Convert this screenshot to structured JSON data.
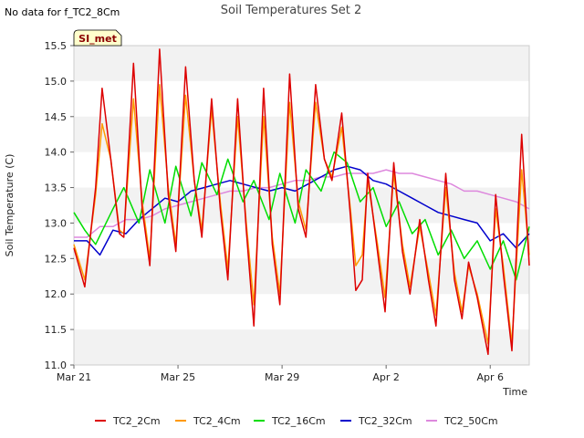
{
  "header": {
    "nodata_text": "No data for f_TC2_8Cm"
  },
  "badge": {
    "label": "SI_met",
    "fill": "#ffffcc",
    "text_color": "#8b0000"
  },
  "chart_data": {
    "type": "line",
    "title": "Soil Temperatures Set 2",
    "xlabel": "Time",
    "ylabel": "Soil Temperature (C)",
    "x_start": "2024-03-21",
    "x_end": "2024-04-07T12:00",
    "ylim": [
      11.0,
      15.5
    ],
    "yticks": [
      11.0,
      11.5,
      12.0,
      12.5,
      13.0,
      13.5,
      14.0,
      14.5,
      15.0,
      15.5
    ],
    "ytick_labels": [
      "11.0",
      "11.5",
      "12.0",
      "12.5",
      "13.0",
      "13.5",
      "14.0",
      "14.5",
      "15.0",
      "15.5"
    ],
    "xticks": [
      {
        "x": "2024-03-21",
        "label": "Mar 21"
      },
      {
        "x": "2024-03-25",
        "label": "Mar 25"
      },
      {
        "x": "2024-03-29",
        "label": "Mar 29"
      },
      {
        "x": "2024-04-02",
        "label": "Apr 2"
      },
      {
        "x": "2024-04-06",
        "label": "Apr 6"
      }
    ],
    "grid": "alternating horizontal bands",
    "band_color": "#f2f2f2",
    "legend_position": "bottom",
    "series": [
      {
        "name": "TC2_2Cm",
        "color": "#dd0000",
        "points": [
          [
            "2024-03-21T00:00",
            12.65
          ],
          [
            "2024-03-21T10:00",
            12.1
          ],
          [
            "2024-03-21T20:00",
            13.5
          ],
          [
            "2024-03-22T02:00",
            14.9
          ],
          [
            "2024-03-22T10:00",
            13.9
          ],
          [
            "2024-03-22T18:00",
            12.85
          ],
          [
            "2024-03-22T22:00",
            12.8
          ],
          [
            "2024-03-23T07:00",
            15.25
          ],
          [
            "2024-03-23T15:00",
            13.2
          ],
          [
            "2024-03-23T22:00",
            12.4
          ],
          [
            "2024-03-24T07:00",
            15.45
          ],
          [
            "2024-03-24T15:00",
            13.4
          ],
          [
            "2024-03-24T22:00",
            12.6
          ],
          [
            "2024-03-25T07:00",
            15.2
          ],
          [
            "2024-03-25T15:00",
            13.6
          ],
          [
            "2024-03-25T22:00",
            12.8
          ],
          [
            "2024-03-26T07:00",
            14.75
          ],
          [
            "2024-03-26T15:00",
            13.2
          ],
          [
            "2024-03-26T22:00",
            12.2
          ],
          [
            "2024-03-27T07:00",
            14.75
          ],
          [
            "2024-03-27T15:00",
            12.9
          ],
          [
            "2024-03-27T22:00",
            11.55
          ],
          [
            "2024-03-28T07:00",
            14.9
          ],
          [
            "2024-03-28T15:00",
            12.7
          ],
          [
            "2024-03-28T22:00",
            11.85
          ],
          [
            "2024-03-29T07:00",
            15.1
          ],
          [
            "2024-03-29T15:00",
            13.2
          ],
          [
            "2024-03-29T22:00",
            12.8
          ],
          [
            "2024-03-30T07:00",
            14.95
          ],
          [
            "2024-03-30T15:00",
            13.9
          ],
          [
            "2024-03-30T22:00",
            13.6
          ],
          [
            "2024-03-31T07:00",
            14.55
          ],
          [
            "2024-03-31T15:00",
            13.1
          ],
          [
            "2024-03-31T20:00",
            12.05
          ],
          [
            "2024-04-01T02:00",
            12.2
          ],
          [
            "2024-04-01T07:00",
            13.7
          ],
          [
            "2024-04-01T16:00",
            12.6
          ],
          [
            "2024-04-01T23:00",
            11.75
          ],
          [
            "2024-04-02T07:00",
            13.85
          ],
          [
            "2024-04-02T15:00",
            12.6
          ],
          [
            "2024-04-02T22:00",
            12.0
          ],
          [
            "2024-04-03T07:00",
            13.05
          ],
          [
            "2024-04-03T15:00",
            12.2
          ],
          [
            "2024-04-03T22:00",
            11.55
          ],
          [
            "2024-04-04T07:00",
            13.7
          ],
          [
            "2024-04-04T15:00",
            12.2
          ],
          [
            "2024-04-04T22:00",
            11.65
          ],
          [
            "2024-04-05T04:00",
            12.45
          ],
          [
            "2024-04-05T12:00",
            11.95
          ],
          [
            "2024-04-05T22:00",
            11.15
          ],
          [
            "2024-04-06T05:00",
            13.4
          ],
          [
            "2024-04-06T12:00",
            12.3
          ],
          [
            "2024-04-06T20:00",
            11.2
          ],
          [
            "2024-04-07T05:00",
            14.25
          ],
          [
            "2024-04-07T12:00",
            12.4
          ]
        ]
      },
      {
        "name": "TC2_4Cm",
        "color": "#ff9900",
        "points": [
          [
            "2024-03-21T00:00",
            12.7
          ],
          [
            "2024-03-21T10:00",
            12.2
          ],
          [
            "2024-03-21T20:00",
            13.4
          ],
          [
            "2024-03-22T02:00",
            14.4
          ],
          [
            "2024-03-22T10:00",
            13.9
          ],
          [
            "2024-03-22T18:00",
            12.9
          ],
          [
            "2024-03-22T22:00",
            12.85
          ],
          [
            "2024-03-23T07:00",
            14.75
          ],
          [
            "2024-03-23T15:00",
            13.3
          ],
          [
            "2024-03-23T22:00",
            12.5
          ],
          [
            "2024-03-24T07:00",
            14.95
          ],
          [
            "2024-03-24T15:00",
            13.5
          ],
          [
            "2024-03-24T22:00",
            12.7
          ],
          [
            "2024-03-25T07:00",
            14.8
          ],
          [
            "2024-03-25T15:00",
            13.6
          ],
          [
            "2024-03-25T22:00",
            12.9
          ],
          [
            "2024-03-26T07:00",
            14.6
          ],
          [
            "2024-03-26T15:00",
            13.3
          ],
          [
            "2024-03-26T22:00",
            12.35
          ],
          [
            "2024-03-27T07:00",
            14.5
          ],
          [
            "2024-03-27T15:00",
            13.0
          ],
          [
            "2024-03-27T22:00",
            11.85
          ],
          [
            "2024-03-28T07:00",
            14.5
          ],
          [
            "2024-03-28T15:00",
            12.8
          ],
          [
            "2024-03-28T22:00",
            12.0
          ],
          [
            "2024-03-29T07:00",
            14.7
          ],
          [
            "2024-03-29T15:00",
            13.3
          ],
          [
            "2024-03-29T22:00",
            12.9
          ],
          [
            "2024-03-30T07:00",
            14.7
          ],
          [
            "2024-03-30T15:00",
            13.9
          ],
          [
            "2024-03-30T22:00",
            13.65
          ],
          [
            "2024-03-31T07:00",
            14.35
          ],
          [
            "2024-03-31T15:00",
            13.2
          ],
          [
            "2024-03-31T20:00",
            12.4
          ],
          [
            "2024-04-01T02:00",
            12.55
          ],
          [
            "2024-04-01T07:00",
            13.6
          ],
          [
            "2024-04-01T16:00",
            12.7
          ],
          [
            "2024-04-01T23:00",
            11.95
          ],
          [
            "2024-04-02T07:00",
            13.7
          ],
          [
            "2024-04-02T15:00",
            12.7
          ],
          [
            "2024-04-02T22:00",
            12.1
          ],
          [
            "2024-04-03T07:00",
            12.95
          ],
          [
            "2024-04-03T15:00",
            12.3
          ],
          [
            "2024-04-03T22:00",
            11.7
          ],
          [
            "2024-04-04T07:00",
            13.5
          ],
          [
            "2024-04-04T15:00",
            12.3
          ],
          [
            "2024-04-04T22:00",
            11.75
          ],
          [
            "2024-04-05T04:00",
            12.4
          ],
          [
            "2024-04-05T12:00",
            12.0
          ],
          [
            "2024-04-05T22:00",
            11.3
          ],
          [
            "2024-04-06T05:00",
            13.2
          ],
          [
            "2024-04-06T12:00",
            12.4
          ],
          [
            "2024-04-06T20:00",
            11.3
          ],
          [
            "2024-04-07T05:00",
            13.75
          ],
          [
            "2024-04-07T12:00",
            12.55
          ]
        ]
      },
      {
        "name": "TC2_16Cm",
        "color": "#00dd00",
        "points": [
          [
            "2024-03-21T00:00",
            13.15
          ],
          [
            "2024-03-21T10:00",
            12.9
          ],
          [
            "2024-03-21T20:00",
            12.7
          ],
          [
            "2024-03-22T12:00",
            13.2
          ],
          [
            "2024-03-22T22:00",
            13.5
          ],
          [
            "2024-03-23T12:00",
            13.0
          ],
          [
            "2024-03-23T22:00",
            13.75
          ],
          [
            "2024-03-24T12:00",
            13.0
          ],
          [
            "2024-03-24T22:00",
            13.8
          ],
          [
            "2024-03-25T12:00",
            13.1
          ],
          [
            "2024-03-25T22:00",
            13.85
          ],
          [
            "2024-03-26T12:00",
            13.4
          ],
          [
            "2024-03-26T22:00",
            13.9
          ],
          [
            "2024-03-27T12:00",
            13.3
          ],
          [
            "2024-03-27T22:00",
            13.6
          ],
          [
            "2024-03-28T12:00",
            13.05
          ],
          [
            "2024-03-28T22:00",
            13.7
          ],
          [
            "2024-03-29T12:00",
            13.0
          ],
          [
            "2024-03-29T22:00",
            13.75
          ],
          [
            "2024-03-30T12:00",
            13.45
          ],
          [
            "2024-03-31T00:00",
            14.0
          ],
          [
            "2024-03-31T12:00",
            13.85
          ],
          [
            "2024-04-01T00:00",
            13.3
          ],
          [
            "2024-04-01T12:00",
            13.5
          ],
          [
            "2024-04-02T00:00",
            12.95
          ],
          [
            "2024-04-02T12:00",
            13.3
          ],
          [
            "2024-04-03T00:00",
            12.85
          ],
          [
            "2024-04-03T12:00",
            13.05
          ],
          [
            "2024-04-04T00:00",
            12.55
          ],
          [
            "2024-04-04T12:00",
            12.9
          ],
          [
            "2024-04-05T00:00",
            12.5
          ],
          [
            "2024-04-05T12:00",
            12.75
          ],
          [
            "2024-04-06T00:00",
            12.35
          ],
          [
            "2024-04-06T12:00",
            12.75
          ],
          [
            "2024-04-07T00:00",
            12.2
          ],
          [
            "2024-04-07T12:00",
            12.95
          ]
        ]
      },
      {
        "name": "TC2_32Cm",
        "color": "#0000cc",
        "points": [
          [
            "2024-03-21T00:00",
            12.75
          ],
          [
            "2024-03-21T12:00",
            12.75
          ],
          [
            "2024-03-22T00:00",
            12.55
          ],
          [
            "2024-03-22T12:00",
            12.9
          ],
          [
            "2024-03-23T00:00",
            12.85
          ],
          [
            "2024-03-23T12:00",
            13.05
          ],
          [
            "2024-03-24T00:00",
            13.2
          ],
          [
            "2024-03-24T12:00",
            13.35
          ],
          [
            "2024-03-25T00:00",
            13.3
          ],
          [
            "2024-03-25T12:00",
            13.45
          ],
          [
            "2024-03-26T00:00",
            13.5
          ],
          [
            "2024-03-26T12:00",
            13.55
          ],
          [
            "2024-03-27T00:00",
            13.6
          ],
          [
            "2024-03-27T12:00",
            13.55
          ],
          [
            "2024-03-28T00:00",
            13.5
          ],
          [
            "2024-03-28T12:00",
            13.45
          ],
          [
            "2024-03-29T00:00",
            13.5
          ],
          [
            "2024-03-29T12:00",
            13.45
          ],
          [
            "2024-03-30T00:00",
            13.55
          ],
          [
            "2024-03-30T12:00",
            13.65
          ],
          [
            "2024-03-31T00:00",
            13.75
          ],
          [
            "2024-03-31T12:00",
            13.8
          ],
          [
            "2024-04-01T00:00",
            13.75
          ],
          [
            "2024-04-01T12:00",
            13.6
          ],
          [
            "2024-04-02T00:00",
            13.55
          ],
          [
            "2024-04-02T12:00",
            13.45
          ],
          [
            "2024-04-03T00:00",
            13.35
          ],
          [
            "2024-04-03T12:00",
            13.25
          ],
          [
            "2024-04-04T00:00",
            13.15
          ],
          [
            "2024-04-04T12:00",
            13.1
          ],
          [
            "2024-04-05T00:00",
            13.05
          ],
          [
            "2024-04-05T12:00",
            13.0
          ],
          [
            "2024-04-06T00:00",
            12.75
          ],
          [
            "2024-04-06T12:00",
            12.85
          ],
          [
            "2024-04-07T00:00",
            12.65
          ],
          [
            "2024-04-07T12:00",
            12.85
          ]
        ]
      },
      {
        "name": "TC2_50Cm",
        "color": "#dd88dd",
        "points": [
          [
            "2024-03-21T00:00",
            12.8
          ],
          [
            "2024-03-21T12:00",
            12.8
          ],
          [
            "2024-03-22T00:00",
            12.95
          ],
          [
            "2024-03-22T12:00",
            12.95
          ],
          [
            "2024-03-23T00:00",
            13.05
          ],
          [
            "2024-03-23T12:00",
            13.05
          ],
          [
            "2024-03-24T00:00",
            13.1
          ],
          [
            "2024-03-24T12:00",
            13.2
          ],
          [
            "2024-03-25T00:00",
            13.25
          ],
          [
            "2024-03-25T12:00",
            13.3
          ],
          [
            "2024-03-26T00:00",
            13.35
          ],
          [
            "2024-03-26T12:00",
            13.4
          ],
          [
            "2024-03-27T00:00",
            13.45
          ],
          [
            "2024-03-27T12:00",
            13.45
          ],
          [
            "2024-03-28T00:00",
            13.5
          ],
          [
            "2024-03-28T12:00",
            13.5
          ],
          [
            "2024-03-29T00:00",
            13.55
          ],
          [
            "2024-03-29T12:00",
            13.6
          ],
          [
            "2024-03-30T00:00",
            13.6
          ],
          [
            "2024-03-30T12:00",
            13.65
          ],
          [
            "2024-03-31T00:00",
            13.65
          ],
          [
            "2024-03-31T12:00",
            13.7
          ],
          [
            "2024-04-01T00:00",
            13.7
          ],
          [
            "2024-04-01T12:00",
            13.7
          ],
          [
            "2024-04-02T00:00",
            13.75
          ],
          [
            "2024-04-02T12:00",
            13.7
          ],
          [
            "2024-04-03T00:00",
            13.7
          ],
          [
            "2024-04-03T12:00",
            13.65
          ],
          [
            "2024-04-04T00:00",
            13.6
          ],
          [
            "2024-04-04T12:00",
            13.55
          ],
          [
            "2024-04-05T00:00",
            13.45
          ],
          [
            "2024-04-05T12:00",
            13.45
          ],
          [
            "2024-04-06T00:00",
            13.4
          ],
          [
            "2024-04-06T12:00",
            13.35
          ],
          [
            "2024-04-07T00:00",
            13.3
          ],
          [
            "2024-04-07T12:00",
            13.2
          ]
        ]
      }
    ]
  }
}
